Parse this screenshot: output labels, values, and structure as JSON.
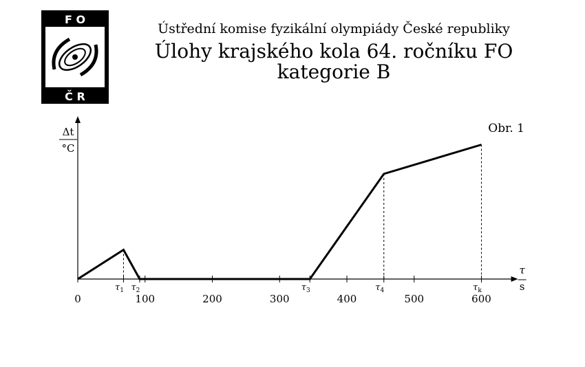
{
  "logo": {
    "top_text": "F O",
    "bottom_text": "Č R"
  },
  "header": {
    "committee": "Ústřední komise fyzikální olympiády České republiky",
    "title": "Úlohy krajského kola 64. ročníku FO",
    "subtitle": "kategorie B"
  },
  "chart_data": {
    "type": "line",
    "figure_label": "Obr. 1",
    "y_label": {
      "numerator": "Δt",
      "denominator": "°C"
    },
    "x_label": {
      "numerator": "τ",
      "denominator": "s"
    },
    "xlim": [
      0,
      640
    ],
    "x_ticks": [
      {
        "value": 0,
        "label": "0"
      },
      {
        "value": 100,
        "label": "100"
      },
      {
        "value": 200,
        "label": "200"
      },
      {
        "value": 300,
        "label": "300"
      },
      {
        "value": 400,
        "label": "400"
      },
      {
        "value": 500,
        "label": "500"
      },
      {
        "value": 600,
        "label": "600"
      }
    ],
    "x_markers": [
      {
        "value": 68,
        "label": "τ1",
        "dashed": true
      },
      {
        "value": 92,
        "label": "τ2",
        "dashed": false
      },
      {
        "value": 345,
        "label": "τ3",
        "dashed": false
      },
      {
        "value": 455,
        "label": "τ4",
        "dashed": true
      },
      {
        "value": 600,
        "label": "τk",
        "dashed": true
      }
    ],
    "series": [
      {
        "points": [
          [
            0,
            0
          ],
          [
            68,
            1
          ],
          [
            92,
            0
          ],
          [
            345,
            0
          ],
          [
            455,
            3.6
          ],
          [
            600,
            4.6
          ]
        ]
      }
    ],
    "ylim": [
      0,
      5
    ]
  }
}
